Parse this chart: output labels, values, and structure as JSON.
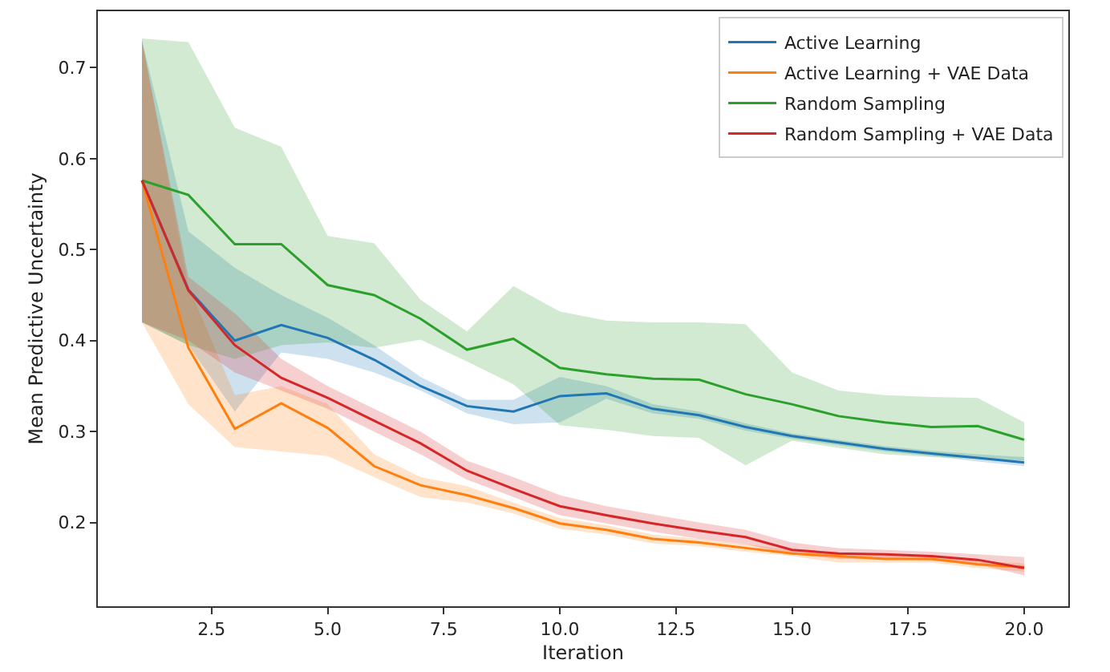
{
  "chart_data": {
    "type": "line",
    "xlabel": "Iteration",
    "ylabel": "Mean Predictive Uncertainty",
    "x": [
      1,
      2,
      3,
      4,
      5,
      6,
      7,
      8,
      9,
      10,
      11,
      12,
      13,
      14,
      15,
      16,
      17,
      18,
      19,
      20
    ],
    "xlim": [
      0.05,
      20.95
    ],
    "xticks": [
      {
        "value": 2.5,
        "label": "2.5"
      },
      {
        "value": 5,
        "label": "5.0"
      },
      {
        "value": 7.5,
        "label": "7.5"
      },
      {
        "value": 10,
        "label": "10.0"
      },
      {
        "value": 12.5,
        "label": "12.5"
      },
      {
        "value": 15,
        "label": "15.0"
      },
      {
        "value": 17.5,
        "label": "17.5"
      },
      {
        "value": 20,
        "label": "20.0"
      }
    ],
    "ylim": [
      0.108,
      0.762
    ],
    "yticks": [
      0.2,
      0.3,
      0.4,
      0.5,
      0.6,
      0.7
    ],
    "legend": "top right",
    "marker": "none",
    "line_style": "solid",
    "series": [
      {
        "name": "Active Learning",
        "color": "#1f77b4",
        "values": [
          0.576,
          0.456,
          0.4,
          0.417,
          0.403,
          0.379,
          0.35,
          0.328,
          0.322,
          0.339,
          0.342,
          0.325,
          0.318,
          0.305,
          0.295,
          0.288,
          0.281,
          0.276,
          0.271,
          0.266
        ],
        "upper": [
          0.73,
          0.52,
          0.48,
          0.45,
          0.425,
          0.395,
          0.36,
          0.335,
          0.335,
          0.36,
          0.35,
          0.33,
          0.322,
          0.309,
          0.298,
          0.291,
          0.284,
          0.279,
          0.275,
          0.272
        ],
        "lower": [
          0.42,
          0.395,
          0.322,
          0.387,
          0.38,
          0.365,
          0.345,
          0.32,
          0.308,
          0.31,
          0.336,
          0.32,
          0.314,
          0.301,
          0.292,
          0.285,
          0.278,
          0.273,
          0.267,
          0.262
        ]
      },
      {
        "name": "Active Learning + VAE Data",
        "color": "#ff7f0e",
        "values": [
          0.576,
          0.392,
          0.303,
          0.331,
          0.304,
          0.262,
          0.241,
          0.23,
          0.216,
          0.199,
          0.192,
          0.182,
          0.178,
          0.172,
          0.166,
          0.163,
          0.16,
          0.16,
          0.154,
          0.151
        ],
        "upper": [
          0.73,
          0.46,
          0.34,
          0.35,
          0.33,
          0.275,
          0.25,
          0.24,
          0.222,
          0.205,
          0.197,
          0.187,
          0.182,
          0.176,
          0.17,
          0.167,
          0.164,
          0.164,
          0.158,
          0.155
        ],
        "lower": [
          0.42,
          0.33,
          0.283,
          0.278,
          0.273,
          0.25,
          0.228,
          0.222,
          0.21,
          0.193,
          0.187,
          0.177,
          0.174,
          0.168,
          0.163,
          0.156,
          0.156,
          0.156,
          0.15,
          0.146
        ]
      },
      {
        "name": "Random Sampling",
        "color": "#2ca02c",
        "values": [
          0.576,
          0.56,
          0.506,
          0.506,
          0.461,
          0.45,
          0.424,
          0.39,
          0.402,
          0.37,
          0.363,
          0.358,
          0.357,
          0.341,
          0.33,
          0.317,
          0.31,
          0.305,
          0.306,
          0.291
        ],
        "upper": [
          0.732,
          0.728,
          0.634,
          0.613,
          0.515,
          0.507,
          0.445,
          0.41,
          0.46,
          0.432,
          0.422,
          0.42,
          0.42,
          0.418,
          0.365,
          0.345,
          0.34,
          0.338,
          0.337,
          0.31
        ],
        "lower": [
          0.42,
          0.395,
          0.38,
          0.395,
          0.398,
          0.392,
          0.401,
          0.377,
          0.352,
          0.307,
          0.302,
          0.295,
          0.293,
          0.263,
          0.29,
          0.282,
          0.275,
          0.272,
          0.27,
          0.268
        ]
      },
      {
        "name": "Random Sampling + VAE Data",
        "color": "#d62728",
        "values": [
          0.576,
          0.455,
          0.395,
          0.359,
          0.337,
          0.312,
          0.287,
          0.257,
          0.237,
          0.218,
          0.208,
          0.199,
          0.191,
          0.184,
          0.17,
          0.166,
          0.165,
          0.163,
          0.159,
          0.15
        ],
        "upper": [
          0.73,
          0.47,
          0.43,
          0.38,
          0.35,
          0.325,
          0.3,
          0.268,
          0.25,
          0.23,
          0.218,
          0.209,
          0.2,
          0.192,
          0.178,
          0.172,
          0.17,
          0.168,
          0.165,
          0.162
        ],
        "lower": [
          0.42,
          0.4,
          0.365,
          0.345,
          0.325,
          0.3,
          0.275,
          0.247,
          0.228,
          0.208,
          0.199,
          0.19,
          0.182,
          0.176,
          0.165,
          0.16,
          0.16,
          0.158,
          0.154,
          0.142
        ]
      }
    ]
  }
}
